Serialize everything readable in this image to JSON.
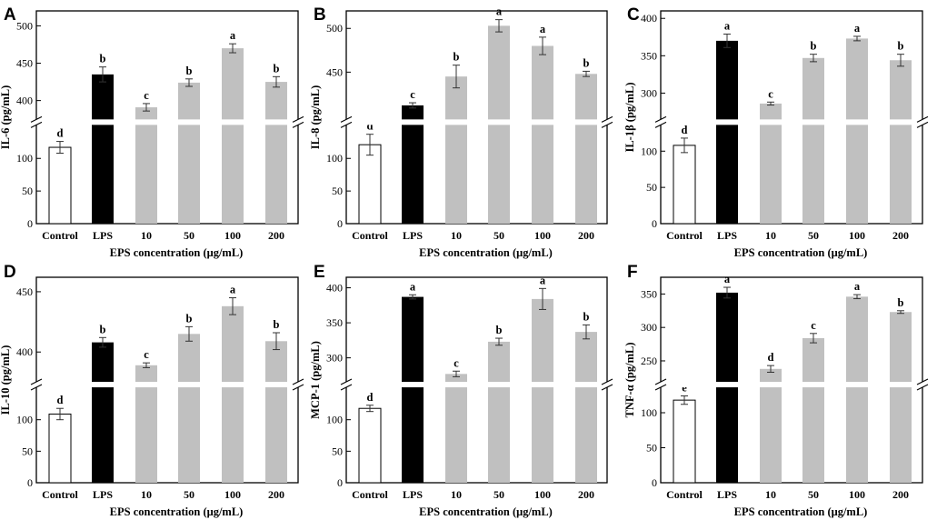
{
  "figure": {
    "colors": {
      "control": "#ffffff",
      "lps": "#000000",
      "eps": "#c0c0c0",
      "axis": "#000000",
      "break": "#ffffff"
    }
  },
  "chart_data": [
    {
      "type": "bar",
      "panel": "A",
      "ylabel": "IL-6 (pg/mL)",
      "xlabel": "EPS concentration (μg/mL)",
      "categories": [
        "Control",
        "LPS",
        "10",
        "50",
        "100",
        "200"
      ],
      "values": [
        117,
        435,
        391,
        424,
        470,
        425
      ],
      "errors": [
        9,
        10,
        5,
        5,
        6,
        7
      ],
      "letters": [
        "d",
        "b",
        "c",
        "b",
        "a",
        "b"
      ],
      "axis_break": {
        "lower_range": [
          0,
          150
        ],
        "upper_range": [
          376,
          520
        ]
      },
      "lower_ticks": [
        0,
        50,
        100
      ],
      "upper_ticks": [
        400,
        450,
        500
      ]
    },
    {
      "type": "bar",
      "panel": "B",
      "ylabel": "IL-8 (pg/mL)",
      "xlabel": "EPS concentration (μg/mL)",
      "categories": [
        "Control",
        "LPS",
        "10",
        "50",
        "100",
        "200"
      ],
      "values": [
        121,
        412,
        445,
        503,
        480,
        448
      ],
      "errors": [
        16,
        3,
        13,
        7,
        10,
        3
      ],
      "letters": [
        "d",
        "c",
        "b",
        "a",
        "a",
        "b"
      ],
      "axis_break": {
        "lower_range": [
          0,
          150
        ],
        "upper_range": [
          397,
          520
        ]
      },
      "lower_ticks": [
        0,
        50,
        100
      ],
      "upper_ticks": [
        450,
        500
      ]
    },
    {
      "type": "bar",
      "panel": "C",
      "ylabel": "IL-1β (pg/mL)",
      "xlabel": "EPS concentration (μg/mL)",
      "categories": [
        "Control",
        "LPS",
        "10",
        "50",
        "100",
        "200"
      ],
      "values": [
        108,
        370,
        286,
        347,
        373,
        344
      ],
      "errors": [
        10,
        9,
        2,
        5,
        3,
        8
      ],
      "letters": [
        "d",
        "a",
        "c",
        "b",
        "a",
        "b"
      ],
      "axis_break": {
        "lower_range": [
          0,
          135
        ],
        "upper_range": [
          266,
          410
        ]
      },
      "lower_ticks": [
        0,
        50,
        100
      ],
      "upper_ticks": [
        300,
        350,
        400
      ]
    },
    {
      "type": "bar",
      "panel": "D",
      "ylabel": "IL-10 (pg/mL)",
      "xlabel": "EPS concentration (μg/mL)",
      "categories": [
        "Control",
        "LPS",
        "10",
        "50",
        "100",
        "200"
      ],
      "values": [
        109,
        408,
        389,
        415,
        438,
        409
      ],
      "errors": [
        9,
        4,
        2,
        6,
        7,
        7
      ],
      "letters": [
        "d",
        "b",
        "c",
        "b",
        "a",
        "b"
      ],
      "axis_break": {
        "lower_range": [
          0,
          150
        ],
        "upper_range": [
          376,
          462
        ]
      },
      "lower_ticks": [
        0,
        50,
        100
      ],
      "upper_ticks": [
        400,
        450
      ]
    },
    {
      "type": "bar",
      "panel": "E",
      "ylabel": "MCP-1 (pg/mL)",
      "xlabel": "EPS concentration (μg/mL)",
      "categories": [
        "Control",
        "LPS",
        "10",
        "50",
        "100",
        "200"
      ],
      "values": [
        118,
        387,
        277,
        323,
        384,
        337
      ],
      "errors": [
        5,
        3,
        4,
        5,
        15,
        10
      ],
      "letters": [
        "d",
        "a",
        "c",
        "b",
        "a",
        "b"
      ],
      "axis_break": {
        "lower_range": [
          0,
          150
        ],
        "upper_range": [
          267,
          415
        ]
      },
      "lower_ticks": [
        0,
        50,
        100
      ],
      "upper_ticks": [
        300,
        350,
        400
      ]
    },
    {
      "type": "bar",
      "panel": "F",
      "ylabel": "TNF-α (pg/mL)",
      "xlabel": "EPS concentration (μg/mL)",
      "categories": [
        "Control",
        "LPS",
        "10",
        "50",
        "100",
        "200"
      ],
      "values": [
        118,
        352,
        238,
        284,
        346,
        323
      ],
      "errors": [
        6,
        8,
        5,
        7,
        3,
        2
      ],
      "letters": [
        "e",
        "a",
        "d",
        "c",
        "a",
        "b"
      ],
      "axis_break": {
        "lower_range": [
          0,
          135
        ],
        "upper_range": [
          220,
          375
        ]
      },
      "lower_ticks": [
        0,
        50,
        100
      ],
      "upper_ticks": [
        250,
        300,
        350
      ]
    }
  ]
}
